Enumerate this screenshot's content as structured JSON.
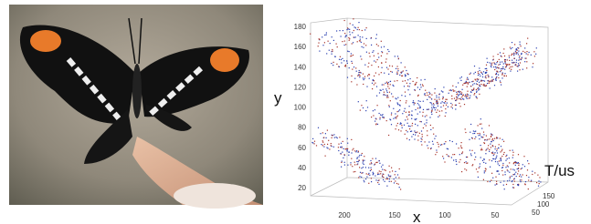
{
  "figure": {
    "plot": {
      "y_label": "y",
      "x_label": "x",
      "t_label": "T/us",
      "y_ticks": [
        "20",
        "40",
        "60",
        "80",
        "100",
        "120",
        "140",
        "160",
        "180"
      ],
      "x_ticks": [
        "200",
        "150",
        "100",
        "50"
      ],
      "t_ticks": [
        "150",
        "100",
        "50"
      ]
    }
  }
}
